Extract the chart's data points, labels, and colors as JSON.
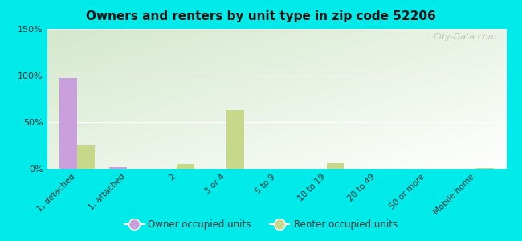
{
  "title": "Owners and renters by unit type in zip code 52206",
  "categories": [
    "1, detached",
    "1, attached",
    "2",
    "3 or 4",
    "5 to 9",
    "10 to 19",
    "20 to 49",
    "50 or more",
    "Mobile home"
  ],
  "owner_values": [
    97,
    2,
    0,
    0,
    0,
    0,
    0,
    0,
    0
  ],
  "renter_values": [
    25,
    0,
    5,
    63,
    0,
    6,
    0,
    0,
    1
  ],
  "owner_color": "#c9a0dc",
  "renter_color": "#c8d88a",
  "background_color": "#00eaea",
  "grad_top_left": "#d4e8cc",
  "grad_bottom_right": "#f8fbf3",
  "ylim": [
    0,
    150
  ],
  "yticks": [
    0,
    50,
    100,
    150
  ],
  "ytick_labels": [
    "0%",
    "50%",
    "100%",
    "150%"
  ],
  "bar_width": 0.35,
  "legend_owner": "Owner occupied units",
  "legend_renter": "Renter occupied units",
  "watermark": "City-Data.com"
}
